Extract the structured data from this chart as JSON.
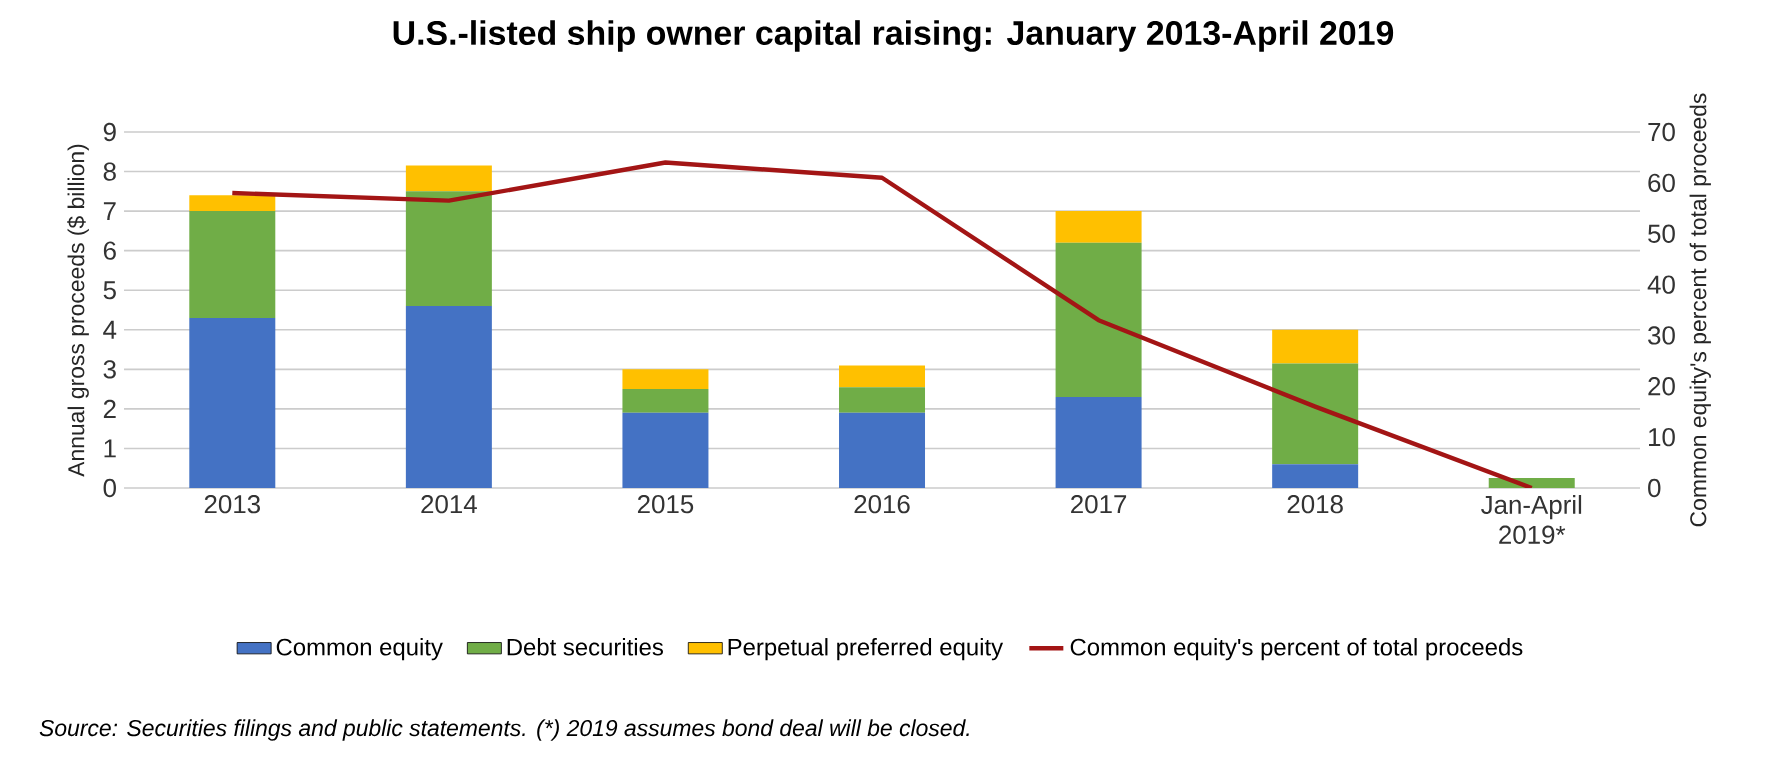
{
  "chart_data": {
    "type": "bar",
    "title": "U.S.-listed ship owner capital raising: January 2013-April 2019",
    "ylabel": "Annual gross proceeds ($ billion)",
    "y2label": "Common equity's percent of total proceeds",
    "categories": [
      "2013",
      "2014",
      "2015",
      "2016",
      "2017",
      "2018",
      "Jan-April 2019*"
    ],
    "stacked": true,
    "series": [
      {
        "name": "Common equity",
        "color": "#4472c4",
        "values": [
          4.3,
          4.6,
          1.9,
          1.9,
          2.3,
          0.6,
          0
        ]
      },
      {
        "name": "Debt securities",
        "color": "#70ad47",
        "values": [
          2.7,
          2.9,
          0.6,
          0.65,
          3.9,
          2.55,
          0.25
        ]
      },
      {
        "name": "Perpetual preferred equity",
        "color": "#ffc000",
        "values": [
          0.4,
          0.65,
          0.5,
          0.55,
          0.8,
          0.85,
          0
        ]
      },
      {
        "name": "Common equity's percent of total proceeds",
        "color": "#a31515",
        "type": "line",
        "axis": "y2",
        "values": [
          58,
          56.5,
          64,
          61,
          33,
          16,
          0
        ]
      }
    ],
    "ylim": [
      0,
      9
    ],
    "yticks": [
      0,
      1,
      2,
      3,
      4,
      5,
      6,
      7,
      8,
      9
    ],
    "y2lim": [
      0,
      70
    ],
    "y2ticks": [
      0,
      10,
      20,
      30,
      40,
      50,
      60,
      70
    ],
    "grid": "y",
    "legend": "bottom",
    "annotations": [
      "Source: Securities filings and public statements. (*) 2019 assumes bond deal will be closed."
    ]
  }
}
